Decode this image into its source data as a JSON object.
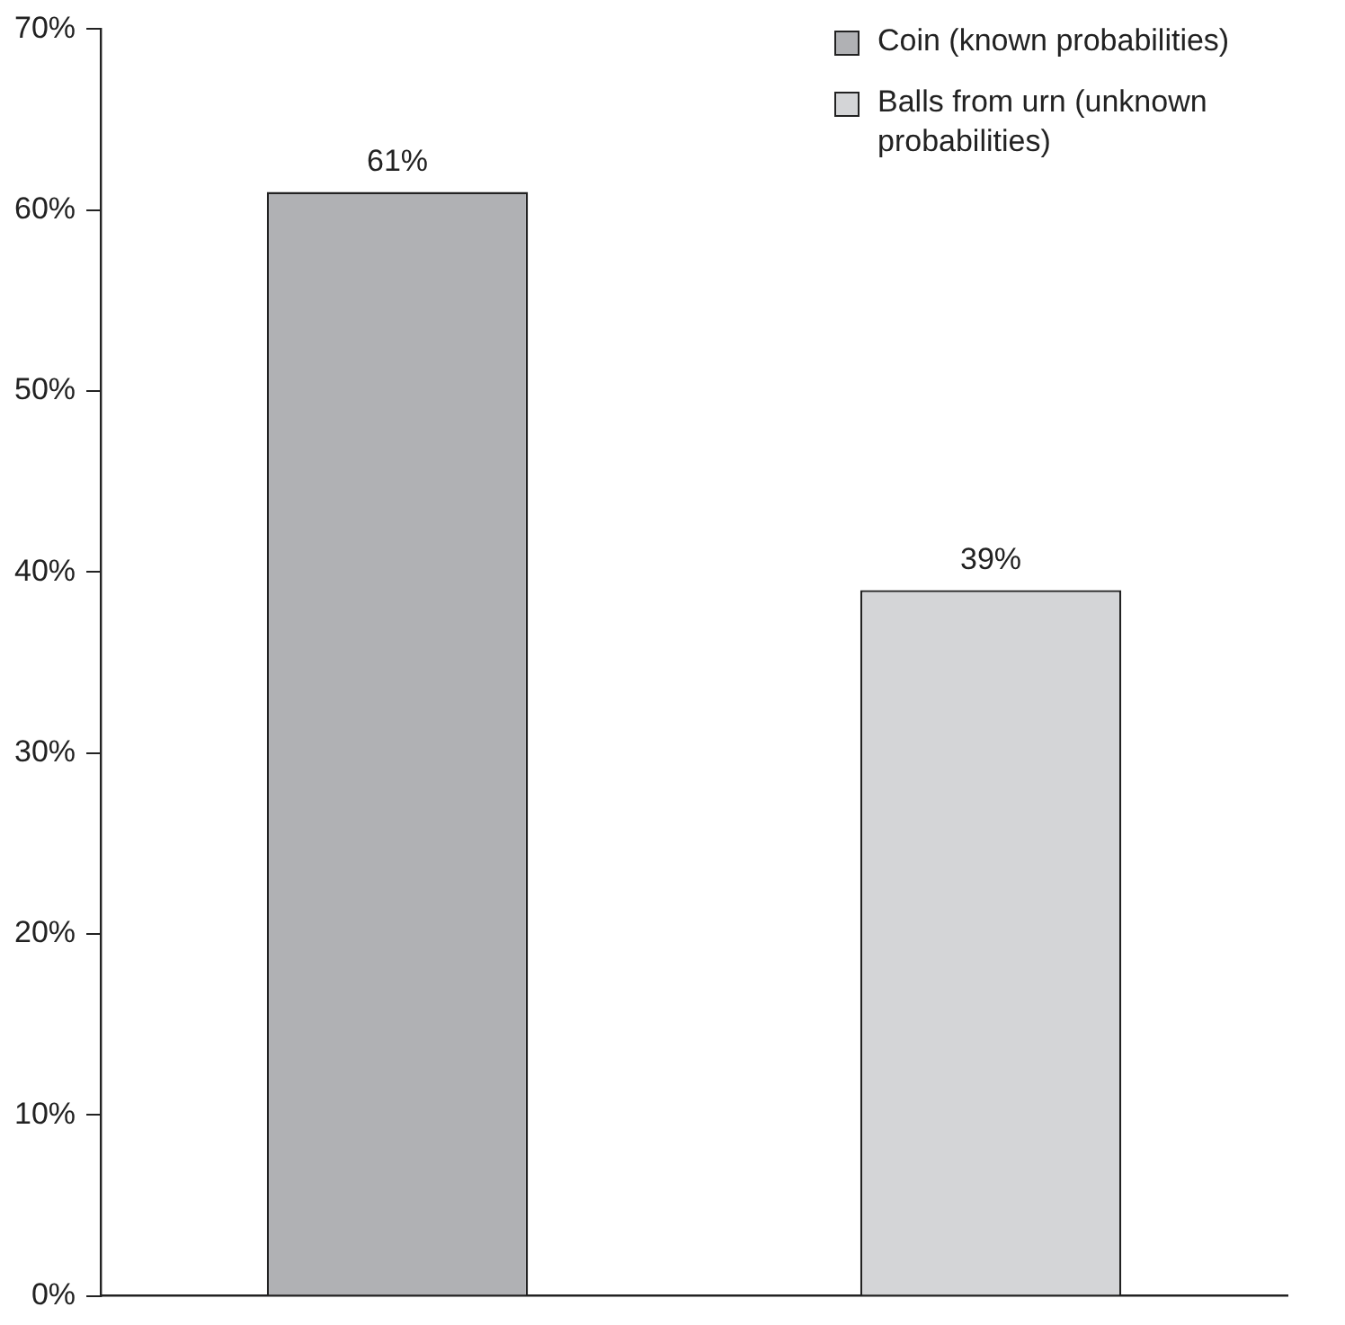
{
  "chart_data": {
    "type": "bar",
    "categories": [
      null,
      null
    ],
    "series": [
      {
        "name": "Coin (known probabilities)",
        "color": "#b0b1b4",
        "values": [
          61,
          null
        ],
        "value_labels": [
          "61%",
          null
        ]
      },
      {
        "name": "Balls from urn (unknown probabilities)",
        "color": "#d4d5d7",
        "values": [
          null,
          39
        ],
        "value_labels": [
          null,
          "39%"
        ]
      }
    ],
    "ylim": [
      0,
      70
    ],
    "yticks": [
      {
        "value": 0,
        "label": "0%"
      },
      {
        "value": 10,
        "label": "10%"
      },
      {
        "value": 20,
        "label": "20%"
      },
      {
        "value": 30,
        "label": "30%"
      },
      {
        "value": 40,
        "label": "40%"
      },
      {
        "value": 50,
        "label": "50%"
      },
      {
        "value": 60,
        "label": "60%"
      },
      {
        "value": 70,
        "label": "70%"
      }
    ],
    "grid": false,
    "legend": "top right"
  }
}
